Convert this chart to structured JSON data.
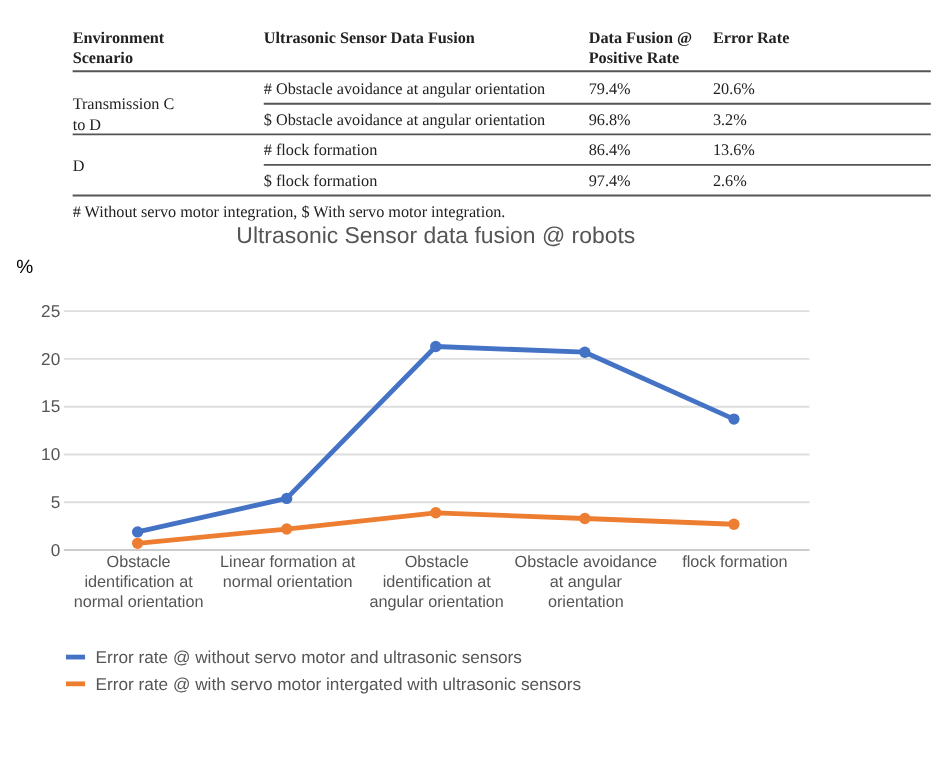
{
  "chart_data": {
    "type": "line",
    "title": "Ultrasonic Sensor data fusion @  robots",
    "ylabel": "%",
    "categories": [
      "Obstacle identification at normal orientation",
      "Linear formation at normal orientation",
      "Obstacle identification at angular orientation",
      "Obstacle avoidance at angular orientation",
      "flock formation"
    ],
    "series": [
      {
        "name": "Error rate @ without servo motor and ultrasonic sensors",
        "color": "#4472c4",
        "values": [
          1.8,
          5.3,
          21.2,
          20.6,
          13.6
        ]
      },
      {
        "name": "Error rate @ with servo motor intergated with ultrasonic sensors",
        "color": "#ed7d31",
        "values": [
          0.6,
          2.1,
          3.8,
          3.2,
          2.6
        ]
      }
    ],
    "ylim": [
      0,
      25
    ],
    "yticks": [
      0,
      5,
      10,
      15,
      20,
      25
    ],
    "grid": "y",
    "legend": "bottom",
    "marker": "circle",
    "line_style": "solid",
    "annotations": [
      "Environment Scenario",
      "Ultrasonic Sensor Data Fusion",
      "Data Fusion @ Positive Rate",
      "Error Rate",
      "Transmission C to D",
      "# Obstacle avoidance at angular orientation",
      "79.4%",
      "20.6%",
      "$ Obstacle avoidance at angular orientation",
      "96.8%",
      "3.2%",
      "D",
      "# flock formation",
      "86.4%",
      "13.6%",
      "$ flock formation",
      "97.4%",
      "2.6%",
      "# Without servo motor integration, $ With servo motor integration."
    ]
  }
}
